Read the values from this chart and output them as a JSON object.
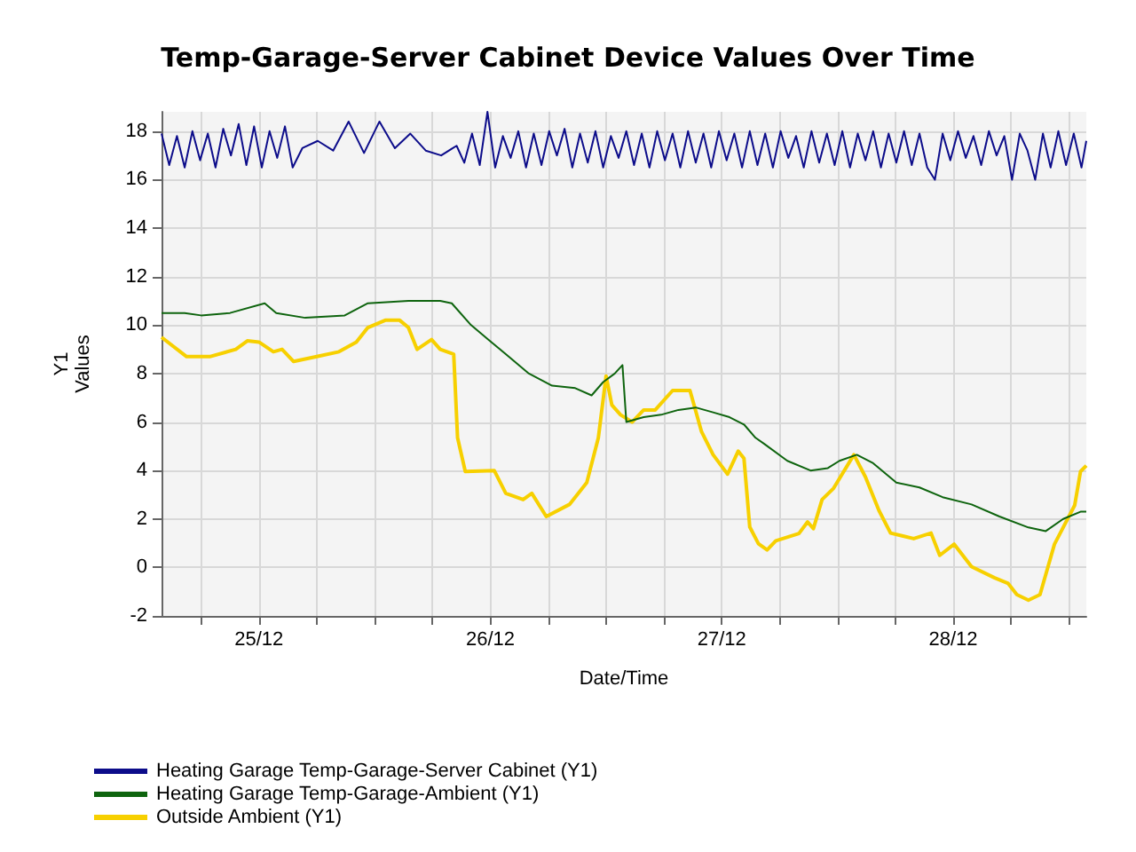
{
  "chart_data": {
    "type": "line",
    "title": "Temp-Garage-Server Cabinet Device Values Over Time",
    "xlabel": "Date/Time",
    "ylabel": "Y1\nValues",
    "xlim": [
      "--12-24T13:54",
      "--12-28T13:48"
    ],
    "xticks": [
      {
        "value": "--12-24T18:00",
        "label": null
      },
      {
        "value": "--12-25",
        "label": "25/12"
      },
      {
        "value": "--12-25T06:00",
        "label": null
      },
      {
        "value": "--12-25T12:00",
        "label": null
      },
      {
        "value": "--12-25T18:00",
        "label": null
      },
      {
        "value": "--12-26",
        "label": "26/12"
      },
      {
        "value": "--12-26T06:00",
        "label": null
      },
      {
        "value": "--12-26T12:00",
        "label": null
      },
      {
        "value": "--12-26T18:00",
        "label": null
      },
      {
        "value": "--12-27",
        "label": "27/12"
      },
      {
        "value": "--12-27T06:00",
        "label": null
      },
      {
        "value": "--12-27T12:00",
        "label": null
      },
      {
        "value": "--12-27T18:00",
        "label": null
      },
      {
        "value": "--12-28",
        "label": "28/12"
      },
      {
        "value": "--12-28T06:00",
        "label": null
      },
      {
        "value": "--12-28T12:00",
        "label": null
      }
    ],
    "ylim": [
      -2,
      18.8
    ],
    "yticks": [
      -2,
      0,
      2,
      4,
      6,
      8,
      10,
      12,
      14,
      16,
      18
    ],
    "grid": true,
    "legend": "bottom",
    "marker": "none",
    "line_style": "solid",
    "series": [
      {
        "name": "Heating Garage Temp-Garage-Server Cabinet (Y1)",
        "color": "#0c0c8a",
        "x": [
          "--12-24T13:54",
          "--12-24T14:42",
          "--12-24T15:30",
          "--12-24T16:18",
          "--12-24T17:06",
          "--12-24T17:54",
          "--12-24T18:42",
          "--12-24T19:30",
          "--12-24T20:18",
          "--12-24T21:06",
          "--12-24T21:54",
          "--12-24T22:42",
          "--12-24T23:30",
          "--12-25T00:18",
          "--12-25T01:06",
          "--12-25T01:54",
          "--12-25T02:42",
          "--12-25T03:30",
          "--12-25T04:30",
          "--12-25T06:06",
          "--12-25T07:42",
          "--12-25T09:18",
          "--12-25T10:54",
          "--12-25T12:30",
          "--12-25T14:06",
          "--12-25T15:42",
          "--12-25T17:18",
          "--12-25T18:54",
          "--12-25T20:30",
          "--12-25T21:18",
          "--12-25T22:06",
          "--12-25T22:54",
          "--12-25T23:42",
          "--12-26T00:30",
          "--12-26T01:18",
          "--12-26T02:06",
          "--12-26T02:54",
          "--12-26T03:42",
          "--12-26T04:30",
          "--12-26T05:18",
          "--12-26T06:06",
          "--12-26T06:54",
          "--12-26T07:42",
          "--12-26T08:30",
          "--12-26T09:18",
          "--12-26T10:06",
          "--12-26T10:54",
          "--12-26T11:42",
          "--12-26T12:30",
          "--12-26T13:18",
          "--12-26T14:06",
          "--12-26T14:54",
          "--12-26T15:42",
          "--12-26T16:30",
          "--12-26T17:18",
          "--12-26T18:06",
          "--12-26T18:54",
          "--12-26T19:42",
          "--12-26T20:30",
          "--12-26T21:18",
          "--12-26T22:06",
          "--12-26T22:54",
          "--12-26T23:42",
          "--12-27T00:30",
          "--12-27T01:18",
          "--12-27T02:06",
          "--12-27T02:54",
          "--12-27T03:42",
          "--12-27T04:30",
          "--12-27T05:18",
          "--12-27T06:06",
          "--12-27T06:54",
          "--12-27T07:42",
          "--12-27T08:30",
          "--12-27T09:18",
          "--12-27T10:06",
          "--12-27T10:54",
          "--12-27T11:42",
          "--12-27T12:30",
          "--12-27T13:18",
          "--12-27T14:06",
          "--12-27T14:54",
          "--12-27T15:42",
          "--12-27T16:30",
          "--12-27T17:18",
          "--12-27T18:06",
          "--12-27T18:54",
          "--12-27T19:42",
          "--12-27T20:30",
          "--12-27T21:18",
          "--12-27T22:06",
          "--12-27T22:54",
          "--12-27T23:42",
          "--12-28T00:30",
          "--12-28T01:18",
          "--12-28T02:06",
          "--12-28T02:54",
          "--12-28T03:42",
          "--12-28T04:30",
          "--12-28T05:18",
          "--12-28T06:06",
          "--12-28T06:54",
          "--12-28T07:42",
          "--12-28T08:30",
          "--12-28T09:18",
          "--12-28T10:06",
          "--12-28T10:54",
          "--12-28T11:42",
          "--12-28T12:30",
          "--12-28T13:18",
          "--12-28T13:48"
        ],
        "values": [
          17.9,
          16.6,
          17.8,
          16.5,
          18.0,
          16.8,
          17.9,
          16.5,
          18.1,
          17.0,
          18.3,
          16.6,
          18.2,
          16.5,
          18.0,
          16.9,
          18.2,
          16.5,
          17.3,
          17.6,
          17.2,
          18.4,
          17.1,
          18.4,
          17.3,
          17.9,
          17.2,
          17.0,
          17.4,
          16.7,
          17.9,
          16.6,
          18.8,
          16.5,
          17.8,
          16.9,
          18.0,
          16.5,
          17.9,
          16.6,
          18.0,
          17.0,
          18.1,
          16.5,
          17.9,
          16.7,
          18.0,
          16.5,
          17.8,
          16.9,
          18.0,
          16.6,
          17.9,
          16.5,
          18.0,
          16.8,
          17.9,
          16.5,
          18.0,
          16.7,
          17.9,
          16.5,
          18.0,
          16.8,
          17.9,
          16.5,
          18.0,
          16.6,
          17.9,
          16.5,
          18.0,
          16.9,
          17.8,
          16.5,
          18.0,
          16.7,
          17.9,
          16.6,
          18.0,
          16.5,
          17.9,
          16.8,
          18.0,
          16.5,
          17.9,
          16.7,
          18.0,
          16.6,
          17.9,
          16.5,
          16.0,
          17.9,
          16.8,
          18.0,
          16.9,
          17.8,
          16.6,
          18.0,
          17.0,
          17.8,
          16.0,
          17.9,
          17.2,
          16.0,
          17.9,
          16.5,
          18.0,
          16.6,
          17.9,
          16.5,
          17.6
        ]
      },
      {
        "name": "Heating Garage Temp-Garage-Ambient (Y1)",
        "color": "#0e640e",
        "x": [
          "--12-24T13:54",
          "--12-24T16:18",
          "--12-24T18:00",
          "--12-24T21:00",
          "--12-25T00:36",
          "--12-25T01:48",
          "--12-25T04:48",
          "--12-25T08:54",
          "--12-25T11:18",
          "--12-25T15:30",
          "--12-25T17:54",
          "--12-25T18:48",
          "--12-25T20:00",
          "--12-25T22:00",
          "--12-25T23:48",
          "--12-26T01:36",
          "--12-26T04:00",
          "--12-26T06:24",
          "--12-26T08:48",
          "--12-26T10:30",
          "--12-26T11:42",
          "--12-26T12:54",
          "--12-26T13:42",
          "--12-26T14:06",
          "--12-26T15:54",
          "--12-26T17:42",
          "--12-26T19:30",
          "--12-26T21:18",
          "--12-26T23:06",
          "--12-27T00:48",
          "--12-27T02:18",
          "--12-27T03:30",
          "--12-27T04:24",
          "--12-27T06:48",
          "--12-27T09:12",
          "--12-27T11:00",
          "--12-27T12:12",
          "--12-27T14:00",
          "--12-27T15:42",
          "--12-27T18:06",
          "--12-27T20:30",
          "--12-27T22:54",
          "--12-28T01:54",
          "--12-28T04:48",
          "--12-28T07:48",
          "--12-28T09:36",
          "--12-28T11:24",
          "--12-28T13:12",
          "--12-28T13:48"
        ],
        "values": [
          10.5,
          10.5,
          10.4,
          10.5,
          10.9,
          10.5,
          10.3,
          10.4,
          10.9,
          11.0,
          11.0,
          11.0,
          10.9,
          10.0,
          9.4,
          8.8,
          8.0,
          7.5,
          7.4,
          7.1,
          7.65,
          8.0,
          8.35,
          6.0,
          6.2,
          6.3,
          6.5,
          6.6,
          6.4,
          6.2,
          5.9,
          5.35,
          5.1,
          4.4,
          4.0,
          4.1,
          4.4,
          4.65,
          4.3,
          3.5,
          3.3,
          2.9,
          2.6,
          2.1,
          1.65,
          1.5,
          2.0,
          2.3,
          2.3
        ]
      },
      {
        "name": "Outside Ambient (Y1)",
        "color": "#f7d000",
        "x": [
          "--12-24T13:54",
          "--12-24T16:30",
          "--12-24T18:54",
          "--12-24T21:36",
          "--12-24T22:48",
          "--12-25T00:00",
          "--12-25T01:30",
          "--12-25T02:24",
          "--12-25T03:36",
          "--12-25T06:00",
          "--12-25T08:18",
          "--12-25T10:06",
          "--12-25T11:18",
          "--12-25T13:06",
          "--12-25T14:36",
          "--12-25T15:30",
          "--12-25T16:24",
          "--12-25T17:54",
          "--12-25T18:48",
          "--12-25T20:12",
          "--12-25T20:36",
          "--12-25T21:24",
          "--12-26T00:24",
          "--12-26T01:36",
          "--12-26T03:24",
          "--12-26T04:18",
          "--12-26T05:48",
          "--12-26T08:12",
          "--12-26T10:00",
          "--12-26T11:12",
          "--12-26T12:00",
          "--12-26T12:36",
          "--12-26T13:30",
          "--12-26T14:42",
          "--12-26T15:54",
          "--12-26T17:06",
          "--12-26T18:54",
          "--12-26T20:42",
          "--12-26T21:54",
          "--12-26T23:06",
          "--12-27T00:36",
          "--12-27T01:42",
          "--12-27T02:18",
          "--12-27T02:54",
          "--12-27T03:48",
          "--12-27T04:42",
          "--12-27T05:36",
          "--12-27T08:00",
          "--12-27T08:54",
          "--12-27T09:30",
          "--12-27T10:24",
          "--12-27T11:36",
          "--12-27T13:42",
          "--12-27T14:54",
          "--12-27T16:18",
          "--12-27T17:30",
          "--12-27T19:54",
          "--12-27T21:42",
          "--12-27T22:36",
          "--12-28T00:06",
          "--12-28T01:54",
          "--12-28T04:18",
          "--12-28T05:42",
          "--12-28T06:36",
          "--12-28T07:48",
          "--12-28T09:00",
          "--12-28T10:30",
          "--12-28T11:24",
          "--12-28T12:36",
          "--12-28T13:12",
          "--12-28T13:48"
        ],
        "values": [
          9.5,
          8.7,
          8.7,
          9.0,
          9.35,
          9.3,
          8.9,
          9.0,
          8.5,
          8.7,
          8.9,
          9.3,
          9.9,
          10.2,
          10.2,
          9.9,
          9.0,
          9.4,
          9.0,
          8.8,
          5.35,
          3.96,
          4.0,
          3.06,
          2.8,
          3.06,
          2.1,
          2.6,
          3.5,
          5.35,
          7.9,
          6.7,
          6.3,
          6.0,
          6.5,
          6.5,
          7.3,
          7.3,
          5.6,
          4.65,
          3.85,
          4.8,
          4.5,
          1.67,
          0.98,
          0.72,
          1.1,
          1.4,
          1.88,
          1.6,
          2.8,
          3.27,
          4.65,
          3.73,
          2.35,
          1.42,
          1.19,
          1.42,
          0.5,
          0.96,
          0.03,
          -0.43,
          -0.66,
          -1.12,
          -1.35,
          -1.12,
          0.96,
          1.65,
          2.57,
          3.96,
          4.2
        ]
      }
    ]
  }
}
